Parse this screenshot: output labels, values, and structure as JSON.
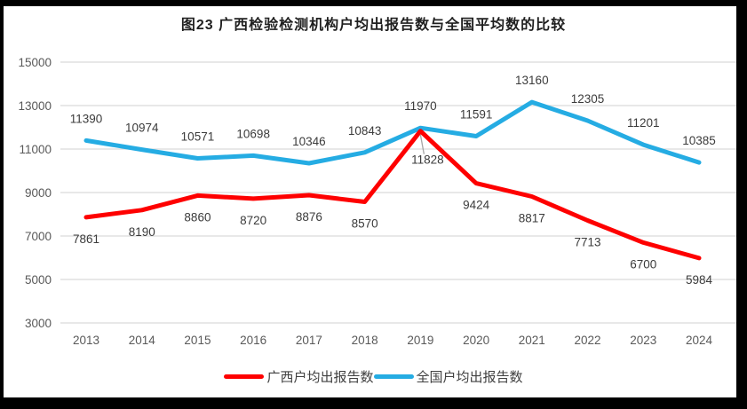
{
  "chart_data": {
    "type": "line",
    "title": "图23 广西检验检测机构户均出报告数与全国平均数的比较",
    "categories": [
      "2013",
      "2014",
      "2015",
      "2016",
      "2017",
      "2018",
      "2019",
      "2020",
      "2021",
      "2022",
      "2023",
      "2024"
    ],
    "series": [
      {
        "name": "广西户均出报告数",
        "color": "#fe0000",
        "values": [
          7861,
          8190,
          8860,
          8720,
          8876,
          8570,
          11828,
          9424,
          8817,
          7713,
          6700,
          5984
        ],
        "label_position": "below",
        "label_overrides": {
          "6": {
            "dx": 8,
            "dy": 37,
            "leader": true
          }
        }
      },
      {
        "name": "全国户均出报告数",
        "color": "#25ace3",
        "values": [
          11390,
          10974,
          10571,
          10698,
          10346,
          10843,
          11970,
          11591,
          13160,
          12305,
          11201,
          10385
        ],
        "label_position": "above",
        "label_overrides": {}
      }
    ],
    "xlabel": "",
    "ylabel": "",
    "ylim": [
      3000,
      15000
    ],
    "yticks": [
      3000,
      5000,
      7000,
      9000,
      11000,
      13000,
      15000
    ],
    "grid": true,
    "legend_position": "bottom",
    "colors": {
      "grid": "#d9d9d9",
      "axis_text": "#595959",
      "data_label_text": "#3b3b3b",
      "leader_line": "#a6a6a6"
    }
  }
}
